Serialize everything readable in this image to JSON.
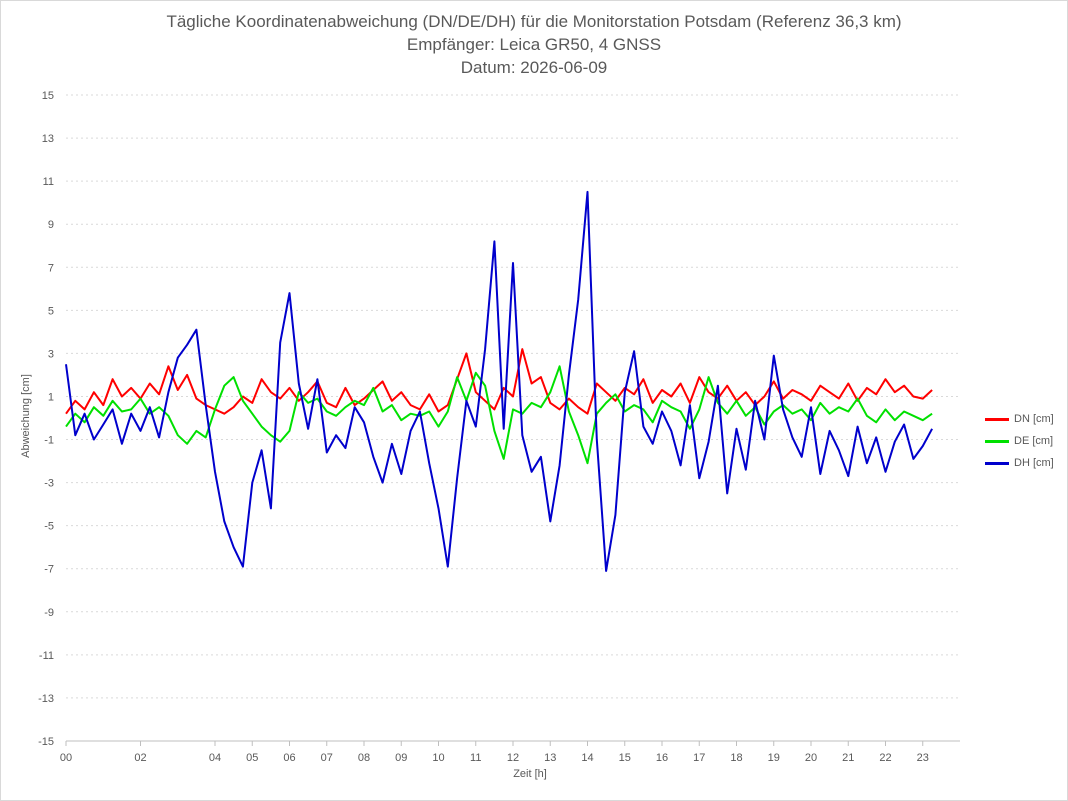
{
  "title": {
    "line1": "Tägliche Koordinatenabweichung (DN/DE/DH) für die Monitorstation Potsdam (Referenz 36,3 km)",
    "line2": "Empfänger: Leica GR50, 4 GNSS",
    "line3": "Datum: 2026-06-09"
  },
  "chart_data": {
    "type": "line",
    "title": "Tägliche Koordinatenabweichung (DN/DE/DH) für die Monitorstation Potsdam (Referenz 36,3 km)",
    "xlabel": "Zeit [h]",
    "ylabel": "Abweichung [cm]",
    "xlim": [
      0,
      24
    ],
    "ylim": [
      -15,
      15
    ],
    "x_ticks": [
      "00",
      "02",
      "04",
      "05",
      "06",
      "07",
      "08",
      "09",
      "10",
      "11",
      "12",
      "13",
      "14",
      "15",
      "16",
      "17",
      "18",
      "19",
      "20",
      "21",
      "22",
      "23"
    ],
    "x_tick_hours": [
      0,
      2,
      4,
      5,
      6,
      7,
      8,
      9,
      10,
      11,
      12,
      13,
      14,
      15,
      16,
      17,
      18,
      19,
      20,
      21,
      22,
      23
    ],
    "y_ticks": [
      15,
      13,
      11,
      9,
      7,
      5,
      3,
      1,
      -1,
      -3,
      -5,
      -7,
      -9,
      -11,
      -13,
      -15
    ],
    "grid": "horizontal dotted",
    "legend_position": "right",
    "series": [
      {
        "name": "DN [cm]",
        "color": "#ff0000",
        "x": [
          0.0,
          0.25,
          0.5,
          0.75,
          1.0,
          1.25,
          1.5,
          1.75,
          2.0,
          2.25,
          2.5,
          2.75,
          3.0,
          3.25,
          3.5,
          3.75,
          4.0,
          4.25,
          4.5,
          4.75,
          5.0,
          5.25,
          5.5,
          5.75,
          6.0,
          6.25,
          6.5,
          6.75,
          7.0,
          7.25,
          7.5,
          7.75,
          8.0,
          8.25,
          8.5,
          8.75,
          9.0,
          9.25,
          9.5,
          9.75,
          10.0,
          10.25,
          10.5,
          10.75,
          11.0,
          11.25,
          11.5,
          11.75,
          12.0,
          12.25,
          12.5,
          12.75,
          13.0,
          13.25,
          13.5,
          13.75,
          14.0,
          14.25,
          14.5,
          14.75,
          15.0,
          15.25,
          15.5,
          15.75,
          16.0,
          16.25,
          16.5,
          16.75,
          17.0,
          17.25,
          17.5,
          17.75,
          18.0,
          18.25,
          18.5,
          18.75,
          19.0,
          19.25,
          19.5,
          19.75,
          20.0,
          20.25,
          20.5,
          20.75,
          21.0,
          21.25,
          21.5,
          21.75,
          22.0,
          22.25,
          22.5,
          22.75,
          23.0,
          23.25
        ],
        "values": [
          0.2,
          0.8,
          0.4,
          1.2,
          0.6,
          1.8,
          1.0,
          1.4,
          0.9,
          1.6,
          1.1,
          2.4,
          1.3,
          2.0,
          0.9,
          0.6,
          0.4,
          0.2,
          0.5,
          1.0,
          0.7,
          1.8,
          1.2,
          0.9,
          1.4,
          0.8,
          1.2,
          1.7,
          0.7,
          0.5,
          1.4,
          0.6,
          0.9,
          1.3,
          1.7,
          0.8,
          1.2,
          0.6,
          0.4,
          1.1,
          0.3,
          0.6,
          1.8,
          3.0,
          1.2,
          0.8,
          0.4,
          1.4,
          1.0,
          3.2,
          1.6,
          1.9,
          0.7,
          0.4,
          0.9,
          0.5,
          0.2,
          1.6,
          1.2,
          0.8,
          1.4,
          1.1,
          1.8,
          0.7,
          1.3,
          1.0,
          1.6,
          0.7,
          1.9,
          1.2,
          0.9,
          1.5,
          0.8,
          1.2,
          0.6,
          1.0,
          1.7,
          0.9,
          1.3,
          1.1,
          0.8,
          1.5,
          1.2,
          0.9,
          1.6,
          0.8,
          1.4,
          1.1,
          1.8,
          1.2,
          1.5,
          1.0,
          0.9,
          1.3
        ]
      },
      {
        "name": "DE [cm]",
        "color": "#00e000",
        "x": [
          0.0,
          0.25,
          0.5,
          0.75,
          1.0,
          1.25,
          1.5,
          1.75,
          2.0,
          2.25,
          2.5,
          2.75,
          3.0,
          3.25,
          3.5,
          3.75,
          4.0,
          4.25,
          4.5,
          4.75,
          5.0,
          5.25,
          5.5,
          5.75,
          6.0,
          6.25,
          6.5,
          6.75,
          7.0,
          7.25,
          7.5,
          7.75,
          8.0,
          8.25,
          8.5,
          8.75,
          9.0,
          9.25,
          9.5,
          9.75,
          10.0,
          10.25,
          10.5,
          10.75,
          11.0,
          11.25,
          11.5,
          11.75,
          12.0,
          12.25,
          12.5,
          12.75,
          13.0,
          13.25,
          13.5,
          13.75,
          14.0,
          14.25,
          14.5,
          14.75,
          15.0,
          15.25,
          15.5,
          15.75,
          16.0,
          16.25,
          16.5,
          16.75,
          17.0,
          17.25,
          17.5,
          17.75,
          18.0,
          18.25,
          18.5,
          18.75,
          19.0,
          19.25,
          19.5,
          19.75,
          20.0,
          20.25,
          20.5,
          20.75,
          21.0,
          21.25,
          21.5,
          21.75,
          22.0,
          22.25,
          22.5,
          22.75,
          23.0,
          23.25
        ],
        "values": [
          -0.4,
          0.2,
          -0.2,
          0.5,
          0.1,
          0.8,
          0.3,
          0.4,
          0.9,
          0.2,
          0.5,
          0.1,
          -0.8,
          -1.2,
          -0.6,
          -0.9,
          0.4,
          1.5,
          1.9,
          0.8,
          0.2,
          -0.4,
          -0.8,
          -1.1,
          -0.6,
          1.2,
          0.7,
          0.9,
          0.3,
          0.1,
          0.5,
          0.8,
          0.6,
          1.4,
          0.3,
          0.6,
          -0.1,
          0.2,
          0.1,
          0.3,
          -0.4,
          0.3,
          1.9,
          0.8,
          2.1,
          1.5,
          -0.6,
          -1.9,
          0.4,
          0.2,
          0.7,
          0.5,
          1.2,
          2.4,
          0.3,
          -0.8,
          -2.1,
          0.2,
          0.7,
          1.1,
          0.3,
          0.6,
          0.4,
          -0.2,
          0.8,
          0.5,
          0.3,
          -0.5,
          0.4,
          1.9,
          0.7,
          0.2,
          0.8,
          0.1,
          0.5,
          -0.3,
          0.3,
          0.6,
          0.2,
          0.4,
          -0.1,
          0.7,
          0.2,
          0.5,
          0.3,
          0.9,
          0.1,
          -0.2,
          0.4,
          -0.1,
          0.3,
          0.1,
          -0.1,
          0.2
        ]
      },
      {
        "name": "DH [cm]",
        "color": "#0000cc",
        "x": [
          0.0,
          0.25,
          0.5,
          0.75,
          1.0,
          1.25,
          1.5,
          1.75,
          2.0,
          2.25,
          2.5,
          2.75,
          3.0,
          3.25,
          3.5,
          3.75,
          4.0,
          4.25,
          4.5,
          4.75,
          5.0,
          5.25,
          5.5,
          5.75,
          6.0,
          6.25,
          6.5,
          6.75,
          7.0,
          7.25,
          7.5,
          7.75,
          8.0,
          8.25,
          8.5,
          8.75,
          9.0,
          9.25,
          9.5,
          9.75,
          10.0,
          10.25,
          10.5,
          10.75,
          11.0,
          11.25,
          11.5,
          11.75,
          12.0,
          12.25,
          12.5,
          12.75,
          13.0,
          13.25,
          13.5,
          13.75,
          14.0,
          14.25,
          14.5,
          14.75,
          15.0,
          15.25,
          15.5,
          15.75,
          16.0,
          16.25,
          16.5,
          16.75,
          17.0,
          17.25,
          17.5,
          17.75,
          18.0,
          18.25,
          18.5,
          18.75,
          19.0,
          19.25,
          19.5,
          19.75,
          20.0,
          20.25,
          20.5,
          20.75,
          21.0,
          21.25,
          21.5,
          21.75,
          22.0,
          22.25,
          22.5,
          22.75,
          23.0,
          23.25
        ],
        "values": [
          2.5,
          -0.8,
          0.2,
          -1.0,
          -0.3,
          0.4,
          -1.2,
          0.2,
          -0.6,
          0.5,
          -0.9,
          1.2,
          2.8,
          3.4,
          4.1,
          0.6,
          -2.5,
          -4.8,
          -6.0,
          -6.9,
          -3.0,
          -1.5,
          -4.2,
          3.5,
          5.8,
          1.6,
          -0.5,
          1.8,
          -1.6,
          -0.8,
          -1.4,
          0.5,
          -0.2,
          -1.8,
          -3.0,
          -1.2,
          -2.6,
          -0.6,
          0.3,
          -2.1,
          -4.2,
          -6.9,
          -2.8,
          0.8,
          -0.4,
          3.2,
          8.2,
          -0.5,
          7.2,
          -0.8,
          -2.5,
          -1.8,
          -4.8,
          -2.2,
          2.0,
          5.5,
          10.5,
          -1.0,
          -7.1,
          -4.5,
          1.2,
          3.1,
          -0.4,
          -1.2,
          0.3,
          -0.6,
          -2.2,
          0.6,
          -2.8,
          -1.1,
          1.5,
          -3.5,
          -0.5,
          -2.4,
          0.8,
          -1.0,
          2.9,
          0.4,
          -0.9,
          -1.8,
          0.5,
          -2.6,
          -0.6,
          -1.5,
          -2.7,
          -0.4,
          -2.1,
          -0.9,
          -2.5,
          -1.1,
          -0.3,
          -1.9,
          -1.3,
          -0.5
        ]
      }
    ]
  }
}
